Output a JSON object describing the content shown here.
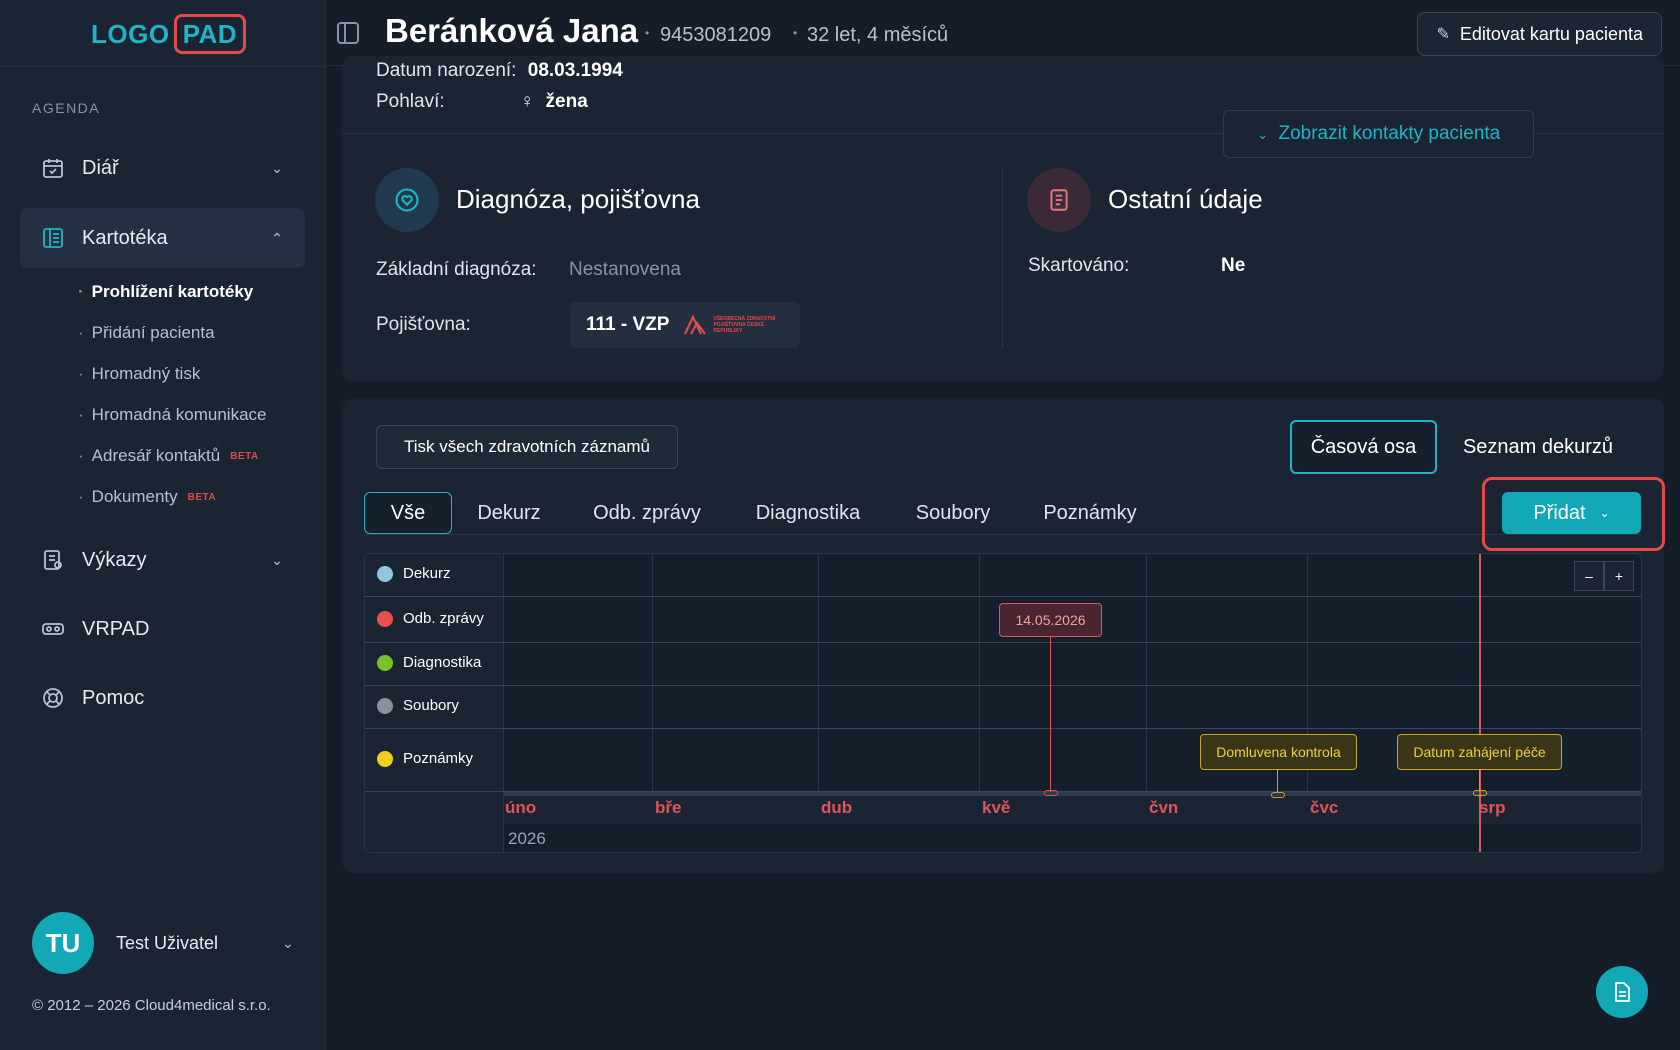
{
  "logo": {
    "part1": "LOGO",
    "part2": "PAD"
  },
  "sidebar": {
    "section": "AGENDA",
    "items": [
      {
        "label": "Diář",
        "icon": "calendar-icon"
      },
      {
        "label": "Kartotéka",
        "icon": "cards-icon"
      },
      {
        "label": "Výkazy",
        "icon": "report-icon"
      },
      {
        "label": "VRPAD",
        "icon": "vr-icon"
      },
      {
        "label": "Pomoc",
        "icon": "lifebuoy-icon"
      }
    ],
    "subitems": [
      {
        "label": "Prohlížení kartotéky"
      },
      {
        "label": "Přidání pacienta"
      },
      {
        "label": "Hromadný tisk"
      },
      {
        "label": "Hromadná komunikace"
      },
      {
        "label": "Adresář kontaktů",
        "badge": "BETA"
      },
      {
        "label": "Dokumenty",
        "badge": "BETA"
      }
    ],
    "user": {
      "initials": "TU",
      "name": "Test Uživatel"
    },
    "copyright": "© 2012 – 2026 Cloud4medical s.r.o."
  },
  "header": {
    "name": "Beránková Jana",
    "id": "9453081209",
    "age": "32 let, 4 měsíců",
    "edit_label": "Editovat kartu pacienta"
  },
  "patient": {
    "birth_label": "Datum narození:",
    "birth_value": "08.03.1994",
    "sex_label": "Pohlaví:",
    "sex_value": "žena",
    "contacts_label": "Zobrazit kontakty pacienta"
  },
  "diagnosis": {
    "title": "Diagnóza, pojišťovna",
    "base_label": "Základní diagnóza:",
    "base_value": "Nestanovena",
    "insurance_label": "Pojišťovna:",
    "insurance_value": "111 - VZP",
    "insurance_logo_text": "VŠEOBECNÁ ZDRAVOTNÍ POJIŠŤOVNA ČESKÉ REPUBLIKY"
  },
  "other": {
    "title": "Ostatní údaje",
    "shred_label": "Skartováno:",
    "shred_value": "Ne"
  },
  "records": {
    "print_label": "Tisk všech zdravotních záznamů",
    "view_timeline": "Časová osa",
    "view_list": "Seznam dekurzů",
    "tabs": [
      "Vše",
      "Dekurz",
      "Odb. zprávy",
      "Diagnostika",
      "Soubory",
      "Poznámky"
    ],
    "add_label": "Přidat"
  },
  "timeline": {
    "rows": [
      {
        "label": "Dekurz",
        "color": "#8fc9d9"
      },
      {
        "label": "Odb. zprávy",
        "color": "#e8504a"
      },
      {
        "label": "Diagnostika",
        "color": "#7bc12a"
      },
      {
        "label": "Soubory",
        "color": "#8a8f98"
      },
      {
        "label": "Poznámky",
        "color": "#f2cf1f"
      }
    ],
    "months": [
      "úno",
      "bře",
      "dub",
      "kvě",
      "čvn",
      "čvc",
      "srp"
    ],
    "year": "2026",
    "date_tag": "14.05.2026",
    "notes": [
      "Domluvena kontrola",
      "Datum zahájení péče"
    ],
    "zoom_out": "–",
    "zoom_in": "+"
  }
}
